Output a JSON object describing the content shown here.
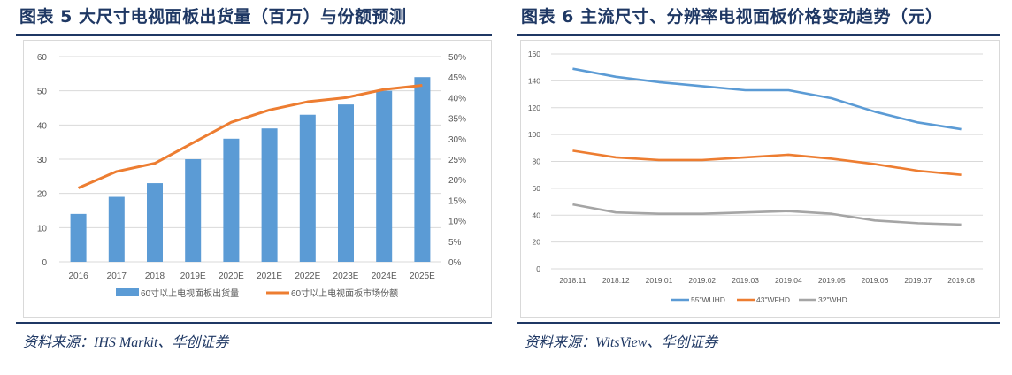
{
  "left": {
    "title": "图表 5   大尺寸电视面板出货量（百万）与份额预测",
    "source": "资料来源：IHS Markit、华创证券"
  },
  "right": {
    "title": "图表 6   主流尺寸、分辨率电视面板价格变动趋势（元）",
    "source": "资料来源：WitsView、华创证券"
  },
  "chart_data": [
    {
      "type": "bar",
      "categories": [
        "2016",
        "2017",
        "2018",
        "2019E",
        "2020E",
        "2021E",
        "2022E",
        "2023E",
        "2024E",
        "2025E"
      ],
      "series": [
        {
          "name": "60寸以上电视面板出货量",
          "kind": "bar",
          "axis": "left",
          "color": "#5b9bd5",
          "values": [
            14,
            19,
            23,
            30,
            36,
            39,
            43,
            46,
            50,
            54
          ]
        },
        {
          "name": "60寸以上电视面板市场份额",
          "kind": "line",
          "axis": "right",
          "color": "#ed7d31",
          "values": [
            18,
            22,
            24,
            29,
            34,
            37,
            39,
            40,
            42,
            43
          ]
        }
      ],
      "ylim": [
        0,
        60
      ],
      "yticks": [
        "0",
        "10",
        "20",
        "30",
        "40",
        "50",
        "60"
      ],
      "y2lim": [
        0,
        50
      ],
      "y2ticks": [
        "0%",
        "5%",
        "10%",
        "15%",
        "20%",
        "25%",
        "30%",
        "35%",
        "40%",
        "45%",
        "50%"
      ],
      "legend_position": "bottom",
      "grid": true
    },
    {
      "type": "line",
      "categories": [
        "2018.11",
        "2018.12",
        "2019.01",
        "2019.02",
        "2019.03",
        "2019.04",
        "2019.05",
        "2019.06",
        "2019.07",
        "2019.08"
      ],
      "series": [
        {
          "name": "55\"WUHD",
          "color": "#5b9bd5",
          "values": [
            149,
            143,
            139,
            136,
            133,
            133,
            127,
            117,
            109,
            104
          ]
        },
        {
          "name": "43\"WFHD",
          "color": "#ed7d31",
          "values": [
            88,
            83,
            81,
            81,
            83,
            85,
            82,
            78,
            73,
            70
          ]
        },
        {
          "name": "32\"WHD",
          "color": "#a5a5a5",
          "values": [
            48,
            42,
            41,
            41,
            42,
            43,
            41,
            36,
            34,
            33
          ]
        }
      ],
      "ylim": [
        0,
        160
      ],
      "yticks": [
        "0",
        "20",
        "40",
        "60",
        "80",
        "100",
        "120",
        "140",
        "160"
      ],
      "legend_position": "bottom",
      "grid": true
    }
  ]
}
